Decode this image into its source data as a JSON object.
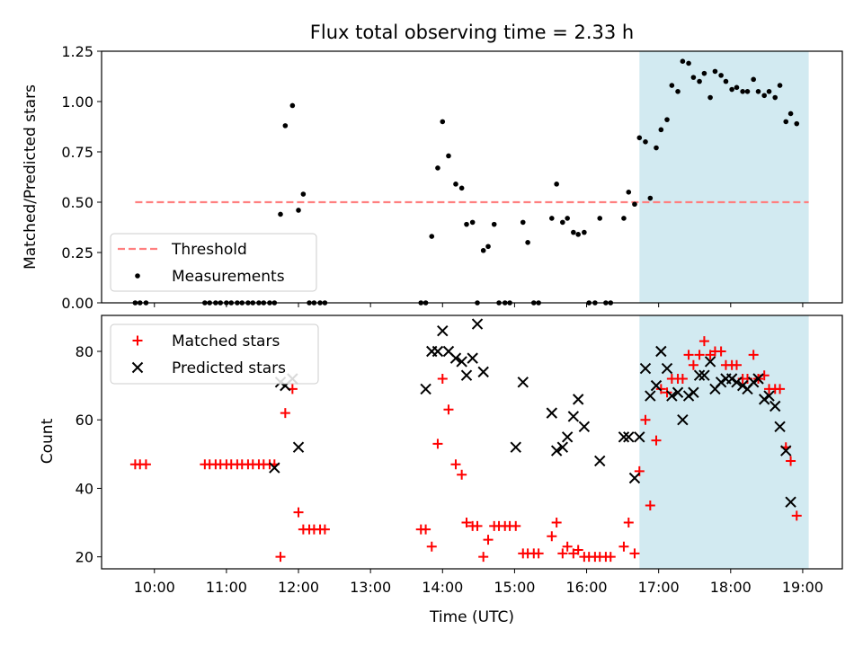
{
  "figure": {
    "title": "Flux total observing time = 2.33 h",
    "xlabel": "Time (UTC)",
    "x_ticks": [
      "10:00",
      "11:00",
      "12:00",
      "13:00",
      "14:00",
      "15:00",
      "16:00",
      "17:00",
      "18:00",
      "19:00"
    ]
  },
  "colors": {
    "threshold": "#ff7f7f",
    "measurement": "#000000",
    "matched": "#ff0000",
    "predicted": "#000000",
    "shade": "#add8e6"
  },
  "chart_data": [
    {
      "type": "scatter",
      "ylabel": "Matched/Predicted stars",
      "xlim": [
        "09:16",
        "19:33"
      ],
      "ylim": [
        0,
        1.25
      ],
      "y_ticks": [
        "0.00",
        "0.25",
        "0.50",
        "0.75",
        "1.00",
        "1.25"
      ],
      "shaded_span": [
        "16:44",
        "19:05"
      ],
      "threshold": {
        "name": "Threshold",
        "value": 0.5,
        "x_range": [
          "09:44",
          "19:05"
        ]
      },
      "legend": {
        "location": "lower left",
        "entries": [
          "Threshold",
          "Measurements"
        ]
      },
      "series": [
        {
          "name": "Measurements",
          "points": [
            [
              "09:44",
              0
            ],
            [
              "09:48",
              0
            ],
            [
              "09:53",
              0
            ],
            [
              "10:42",
              0
            ],
            [
              "10:46",
              0
            ],
            [
              "10:51",
              0
            ],
            [
              "10:55",
              0
            ],
            [
              "11:00",
              0
            ],
            [
              "11:04",
              0
            ],
            [
              "11:09",
              0
            ],
            [
              "11:13",
              0
            ],
            [
              "11:18",
              0
            ],
            [
              "11:22",
              0
            ],
            [
              "11:27",
              0
            ],
            [
              "11:31",
              0
            ],
            [
              "11:36",
              0
            ],
            [
              "11:40",
              0
            ],
            [
              "11:45",
              0.44
            ],
            [
              "11:49",
              0.88
            ],
            [
              "11:55",
              0.98
            ],
            [
              "12:00",
              0.46
            ],
            [
              "12:04",
              0.54
            ],
            [
              "12:09",
              0
            ],
            [
              "12:13",
              0
            ],
            [
              "12:18",
              0
            ],
            [
              "12:22",
              0
            ],
            [
              "13:42",
              0
            ],
            [
              "13:46",
              0
            ],
            [
              "13:51",
              0.33
            ],
            [
              "13:56",
              0.67
            ],
            [
              "14:00",
              0.9
            ],
            [
              "14:05",
              0.73
            ],
            [
              "14:11",
              0.59
            ],
            [
              "14:16",
              0.57
            ],
            [
              "14:20",
              0.39
            ],
            [
              "14:25",
              0.4
            ],
            [
              "14:29",
              0
            ],
            [
              "14:34",
              0.26
            ],
            [
              "14:38",
              0.28
            ],
            [
              "14:43",
              0.39
            ],
            [
              "14:47",
              0
            ],
            [
              "14:52",
              0
            ],
            [
              "14:56",
              0
            ],
            [
              "15:07",
              0.4
            ],
            [
              "15:11",
              0.3
            ],
            [
              "15:16",
              0
            ],
            [
              "15:20",
              0
            ],
            [
              "15:31",
              0.42
            ],
            [
              "15:35",
              0.59
            ],
            [
              "15:40",
              0.4
            ],
            [
              "15:44",
              0.42
            ],
            [
              "15:49",
              0.35
            ],
            [
              "15:53",
              0.34
            ],
            [
              "15:58",
              0.35
            ],
            [
              "16:02",
              0
            ],
            [
              "16:07",
              0
            ],
            [
              "16:11",
              0.42
            ],
            [
              "16:16",
              0
            ],
            [
              "16:20",
              0
            ],
            [
              "16:31",
              0.42
            ],
            [
              "16:35",
              0.55
            ],
            [
              "16:40",
              0.49
            ],
            [
              "16:44",
              0.82
            ],
            [
              "16:49",
              0.8
            ],
            [
              "16:53",
              0.52
            ],
            [
              "16:58",
              0.77
            ],
            [
              "17:02",
              0.86
            ],
            [
              "17:07",
              0.91
            ],
            [
              "17:11",
              1.08
            ],
            [
              "17:16",
              1.05
            ],
            [
              "17:20",
              1.2
            ],
            [
              "17:25",
              1.19
            ],
            [
              "17:29",
              1.12
            ],
            [
              "17:34",
              1.1
            ],
            [
              "17:38",
              1.14
            ],
            [
              "17:43",
              1.02
            ],
            [
              "17:47",
              1.15
            ],
            [
              "17:52",
              1.13
            ],
            [
              "17:56",
              1.1
            ],
            [
              "18:01",
              1.06
            ],
            [
              "18:05",
              1.07
            ],
            [
              "18:10",
              1.05
            ],
            [
              "18:14",
              1.05
            ],
            [
              "18:19",
              1.11
            ],
            [
              "18:23",
              1.05
            ],
            [
              "18:28",
              1.03
            ],
            [
              "18:32",
              1.05
            ],
            [
              "18:37",
              1.02
            ],
            [
              "18:41",
              1.08
            ],
            [
              "18:46",
              0.9
            ],
            [
              "18:50",
              0.94
            ],
            [
              "18:55",
              0.89
            ]
          ]
        }
      ]
    },
    {
      "type": "scatter",
      "ylabel": "Count",
      "xlim": [
        "09:16",
        "19:33"
      ],
      "ylim": [
        16.5,
        90.5
      ],
      "y_ticks": [
        "20",
        "40",
        "60",
        "80"
      ],
      "shaded_span": [
        "16:44",
        "19:05"
      ],
      "legend": {
        "location": "upper left",
        "entries": [
          "Matched stars",
          "Predicted stars"
        ]
      },
      "series": [
        {
          "name": "Matched stars",
          "marker": "+",
          "points": [
            [
              "09:44",
              47
            ],
            [
              "09:48",
              47
            ],
            [
              "09:53",
              47
            ],
            [
              "10:42",
              47
            ],
            [
              "10:46",
              47
            ],
            [
              "10:51",
              47
            ],
            [
              "10:55",
              47
            ],
            [
              "11:00",
              47
            ],
            [
              "11:04",
              47
            ],
            [
              "11:09",
              47
            ],
            [
              "11:13",
              47
            ],
            [
              "11:18",
              47
            ],
            [
              "11:22",
              47
            ],
            [
              "11:27",
              47
            ],
            [
              "11:31",
              47
            ],
            [
              "11:36",
              47
            ],
            [
              "11:40",
              47
            ],
            [
              "11:45",
              20
            ],
            [
              "11:49",
              62
            ],
            [
              "11:55",
              69
            ],
            [
              "12:00",
              33
            ],
            [
              "12:04",
              28
            ],
            [
              "12:09",
              28
            ],
            [
              "12:13",
              28
            ],
            [
              "12:18",
              28
            ],
            [
              "12:22",
              28
            ],
            [
              "13:42",
              28
            ],
            [
              "13:46",
              28
            ],
            [
              "13:51",
              23
            ],
            [
              "13:56",
              53
            ],
            [
              "14:00",
              72
            ],
            [
              "14:05",
              63
            ],
            [
              "14:11",
              47
            ],
            [
              "14:16",
              44
            ],
            [
              "14:20",
              30
            ],
            [
              "14:25",
              29
            ],
            [
              "14:29",
              29
            ],
            [
              "14:34",
              20
            ],
            [
              "14:38",
              25
            ],
            [
              "14:43",
              29
            ],
            [
              "14:47",
              29
            ],
            [
              "14:52",
              29
            ],
            [
              "14:56",
              29
            ],
            [
              "15:01",
              29
            ],
            [
              "15:07",
              21
            ],
            [
              "15:11",
              21
            ],
            [
              "15:16",
              21
            ],
            [
              "15:20",
              21
            ],
            [
              "15:31",
              26
            ],
            [
              "15:35",
              30
            ],
            [
              "15:40",
              21
            ],
            [
              "15:44",
              23
            ],
            [
              "15:49",
              21
            ],
            [
              "15:53",
              22
            ],
            [
              "15:58",
              20
            ],
            [
              "16:02",
              20
            ],
            [
              "16:07",
              20
            ],
            [
              "16:11",
              20
            ],
            [
              "16:16",
              20
            ],
            [
              "16:20",
              20
            ],
            [
              "16:31",
              23
            ],
            [
              "16:35",
              30
            ],
            [
              "16:40",
              21
            ],
            [
              "16:44",
              45
            ],
            [
              "16:49",
              60
            ],
            [
              "16:53",
              35
            ],
            [
              "16:58",
              54
            ],
            [
              "17:02",
              69
            ],
            [
              "17:07",
              68
            ],
            [
              "17:11",
              72
            ],
            [
              "17:16",
              72
            ],
            [
              "17:20",
              72
            ],
            [
              "17:25",
              79
            ],
            [
              "17:29",
              76
            ],
            [
              "17:34",
              79
            ],
            [
              "17:38",
              83
            ],
            [
              "17:43",
              79
            ],
            [
              "17:47",
              80
            ],
            [
              "17:52",
              80
            ],
            [
              "17:56",
              76
            ],
            [
              "18:01",
              76
            ],
            [
              "18:05",
              76
            ],
            [
              "18:10",
              72
            ],
            [
              "18:14",
              72
            ],
            [
              "18:19",
              79
            ],
            [
              "18:23",
              72
            ],
            [
              "18:28",
              73
            ],
            [
              "18:32",
              69
            ],
            [
              "18:37",
              69
            ],
            [
              "18:41",
              69
            ],
            [
              "18:46",
              52
            ],
            [
              "18:50",
              48
            ],
            [
              "18:55",
              32
            ]
          ]
        },
        {
          "name": "Predicted stars",
          "marker": "x",
          "points": [
            [
              "11:40",
              46
            ],
            [
              "11:45",
              71
            ],
            [
              "11:49",
              70
            ],
            [
              "11:55",
              72
            ],
            [
              "12:00",
              52
            ],
            [
              "13:46",
              69
            ],
            [
              "13:51",
              80
            ],
            [
              "13:56",
              80
            ],
            [
              "14:00",
              86
            ],
            [
              "14:05",
              80
            ],
            [
              "14:11",
              78
            ],
            [
              "14:16",
              77
            ],
            [
              "14:20",
              73
            ],
            [
              "14:25",
              78
            ],
            [
              "14:29",
              88
            ],
            [
              "14:34",
              74
            ],
            [
              "15:01",
              52
            ],
            [
              "15:07",
              71
            ],
            [
              "15:31",
              62
            ],
            [
              "15:35",
              51
            ],
            [
              "15:40",
              52
            ],
            [
              "15:44",
              55
            ],
            [
              "15:49",
              61
            ],
            [
              "15:53",
              66
            ],
            [
              "15:58",
              58
            ],
            [
              "16:11",
              48
            ],
            [
              "16:31",
              55
            ],
            [
              "16:35",
              55
            ],
            [
              "16:40",
              43
            ],
            [
              "16:44",
              55
            ],
            [
              "16:49",
              75
            ],
            [
              "16:53",
              67
            ],
            [
              "16:58",
              70
            ],
            [
              "17:02",
              80
            ],
            [
              "17:07",
              75
            ],
            [
              "17:11",
              67
            ],
            [
              "17:16",
              68
            ],
            [
              "17:20",
              60
            ],
            [
              "17:25",
              67
            ],
            [
              "17:29",
              68
            ],
            [
              "17:34",
              73
            ],
            [
              "17:38",
              73
            ],
            [
              "17:43",
              77
            ],
            [
              "17:47",
              69
            ],
            [
              "17:52",
              71
            ],
            [
              "17:56",
              72
            ],
            [
              "18:01",
              72
            ],
            [
              "18:05",
              71
            ],
            [
              "18:10",
              70
            ],
            [
              "18:14",
              69
            ],
            [
              "18:19",
              71
            ],
            [
              "18:23",
              72
            ],
            [
              "18:28",
              66
            ],
            [
              "18:32",
              67
            ],
            [
              "18:37",
              64
            ],
            [
              "18:41",
              58
            ],
            [
              "18:46",
              51
            ],
            [
              "18:50",
              36
            ]
          ]
        }
      ]
    }
  ]
}
